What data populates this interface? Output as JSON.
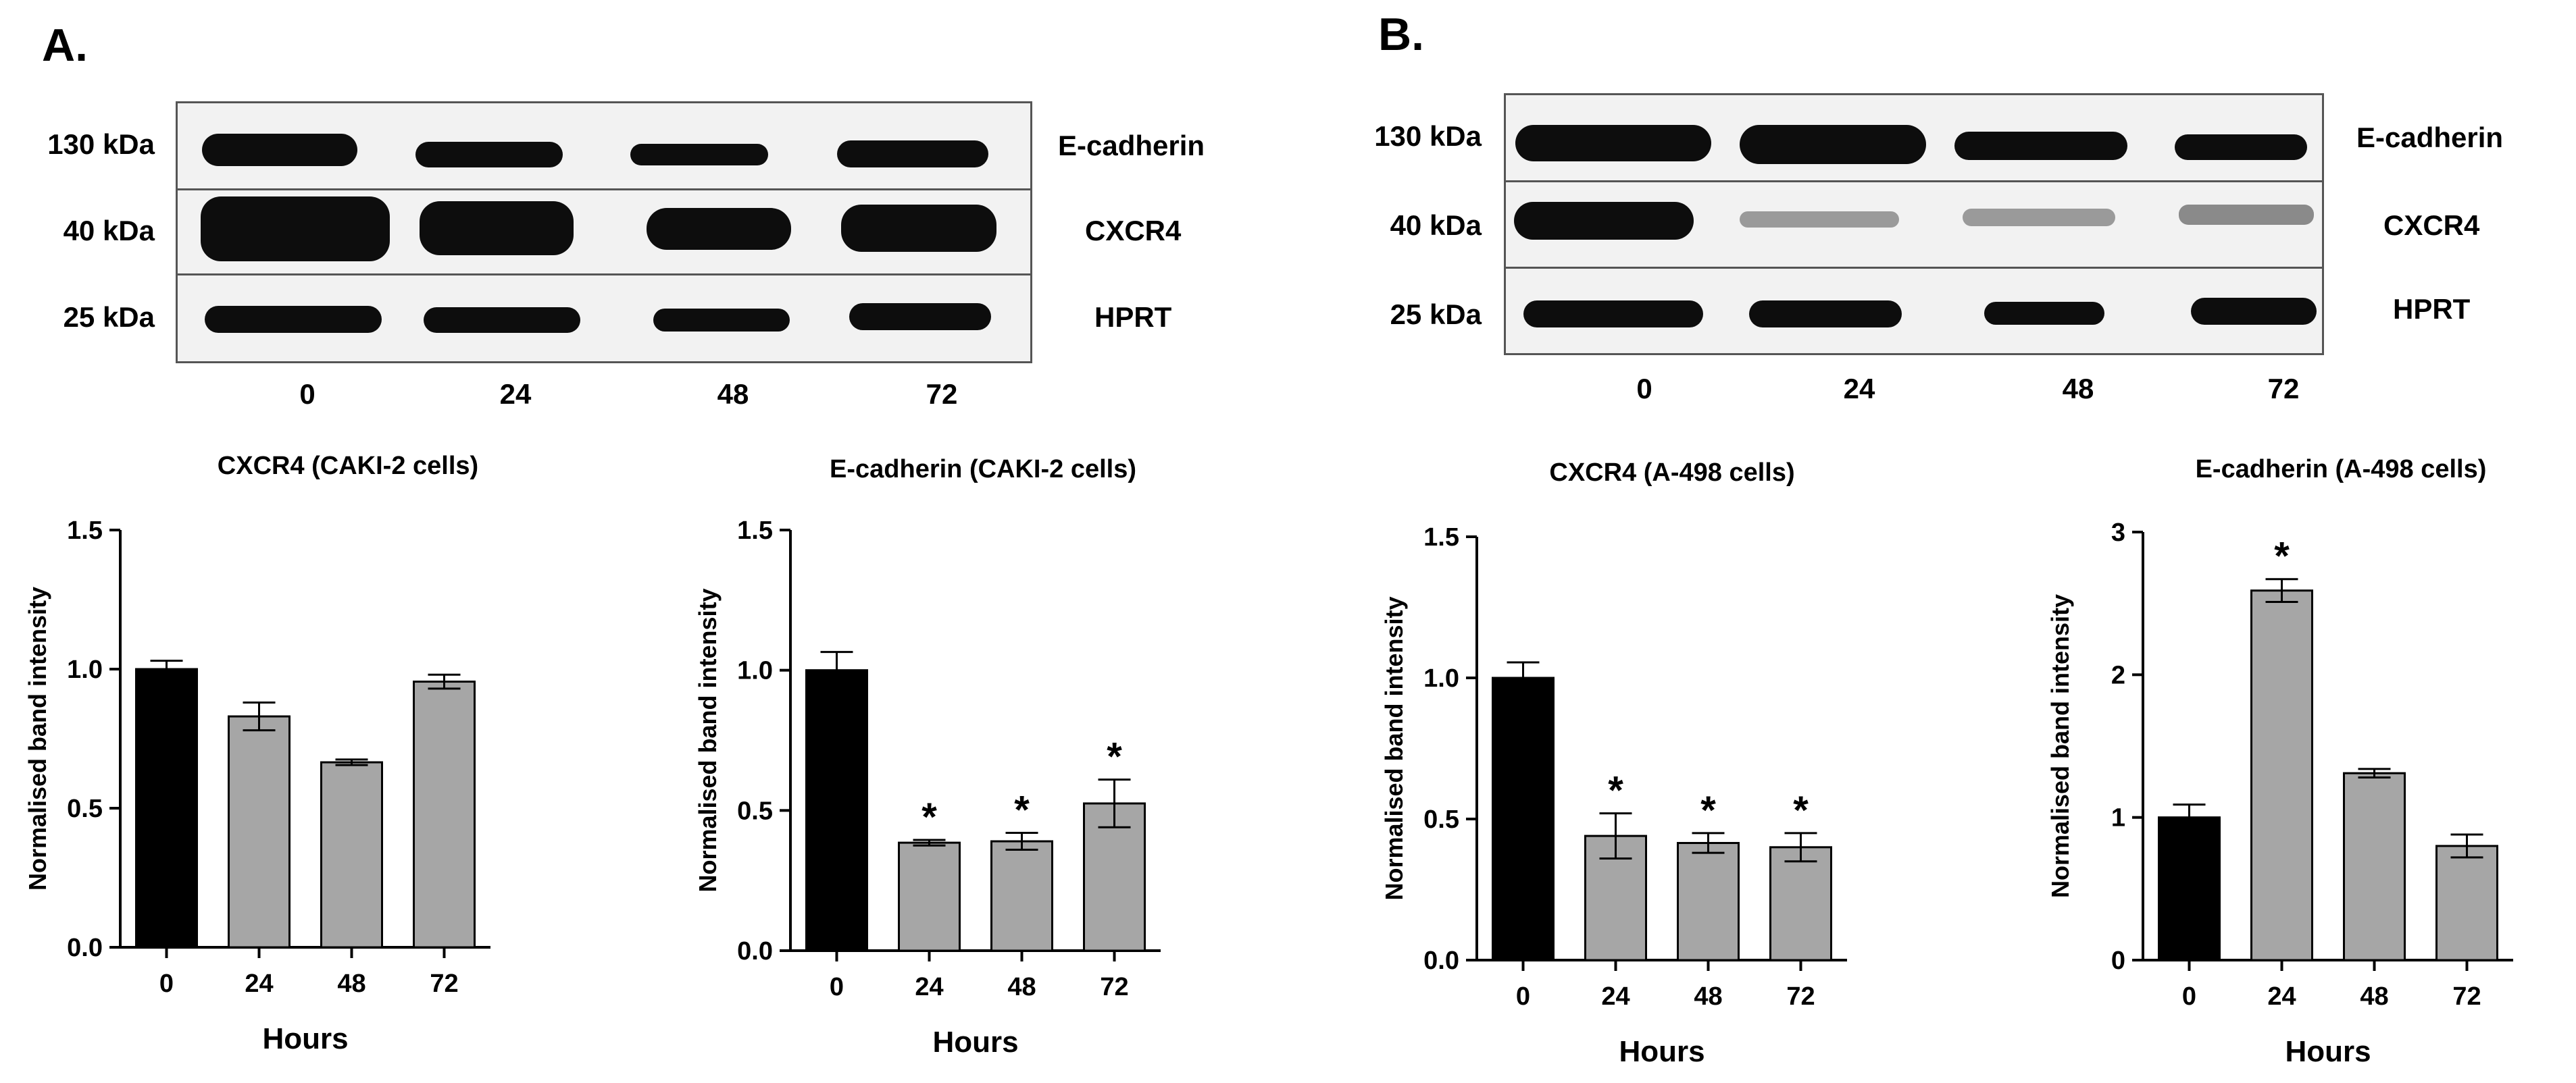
{
  "panels": [
    {
      "letter": "A.",
      "blot": {
        "proteins": [
          "E-cadherin",
          "CXCR4",
          "HPRT"
        ],
        "kda": [
          "130 kDa",
          "40 kDa",
          "25 kDa"
        ],
        "lanes": [
          "0",
          "24",
          "48",
          "72"
        ]
      }
    },
    {
      "letter": "B.",
      "blot": {
        "proteins": [
          "E-cadherin",
          "CXCR4",
          "HPRT"
        ],
        "kda": [
          "130 kDa",
          "40 kDa",
          "25 kDa"
        ],
        "lanes": [
          "0",
          "24",
          "48",
          "72"
        ]
      }
    }
  ],
  "colors": {
    "control_bar": "#000000",
    "treated_bar": "#a6a6a6"
  },
  "chart_data": [
    {
      "type": "bar",
      "title": "CXCR4 (CAKI-2 cells)",
      "xlabel": "Hours",
      "ylabel": "Normalised band intensity",
      "categories": [
        "0",
        "24",
        "48",
        "72"
      ],
      "values": [
        1.0,
        0.83,
        0.665,
        0.955
      ],
      "errors": [
        0.03,
        0.05,
        0.01,
        0.025
      ],
      "significance": [
        "",
        "",
        "",
        ""
      ],
      "ylim": [
        0,
        1.5
      ],
      "yticks": [
        "0.0",
        "0.5",
        "1.0",
        "1.5"
      ]
    },
    {
      "type": "bar",
      "title": "E-cadherin (CAKI-2 cells)",
      "xlabel": "Hours",
      "ylabel": "Normalised band intensity",
      "categories": [
        "0",
        "24",
        "48",
        "72"
      ],
      "values": [
        1.0,
        0.385,
        0.39,
        0.525
      ],
      "errors": [
        0.065,
        0.01,
        0.03,
        0.085
      ],
      "significance": [
        "",
        "*",
        "*",
        "*"
      ],
      "ylim": [
        0,
        1.5
      ],
      "yticks": [
        "0.0",
        "0.5",
        "1.0",
        "1.5"
      ]
    },
    {
      "type": "bar",
      "title": "CXCR4 (A-498 cells)",
      "xlabel": "Hours",
      "ylabel": "Normalised band intensity",
      "categories": [
        "0",
        "24",
        "48",
        "72"
      ],
      "values": [
        1.0,
        0.44,
        0.415,
        0.4
      ],
      "errors": [
        0.055,
        0.08,
        0.035,
        0.05
      ],
      "significance": [
        "",
        "*",
        "*",
        "*"
      ],
      "ylim": [
        0,
        1.5
      ],
      "yticks": [
        "0.0",
        "0.5",
        "1.0",
        "1.5"
      ]
    },
    {
      "type": "bar",
      "title": "E-cadherin (A-498 cells)",
      "xlabel": "Hours",
      "ylabel": "Normalised band intensity",
      "categories": [
        "0",
        "24",
        "48",
        "72"
      ],
      "values": [
        1.0,
        2.59,
        1.31,
        0.8
      ],
      "errors": [
        0.09,
        0.08,
        0.03,
        0.08
      ],
      "significance": [
        "",
        "*",
        "",
        ""
      ],
      "ylim": [
        0,
        3
      ],
      "yticks": [
        "0",
        "1",
        "2",
        "3"
      ]
    }
  ]
}
